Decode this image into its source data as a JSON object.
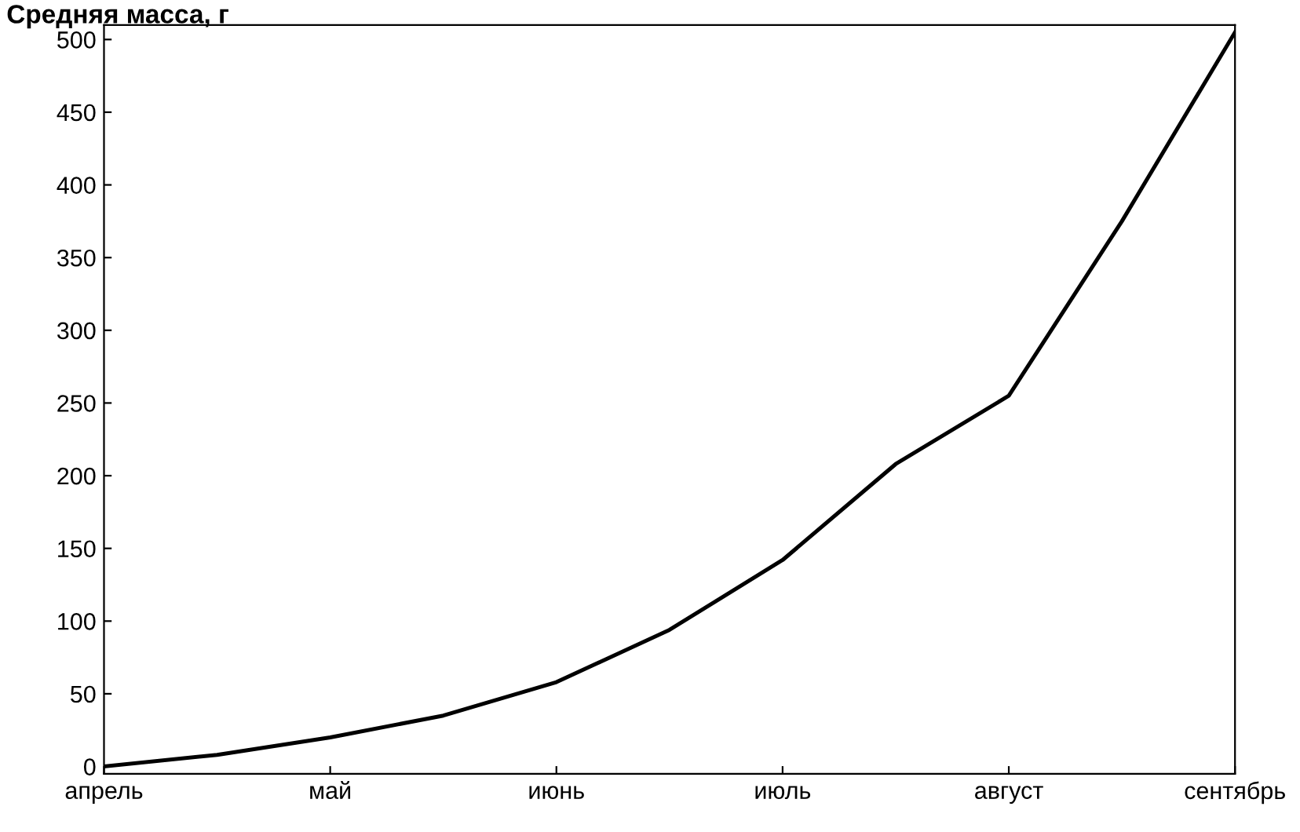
{
  "chart_data": {
    "type": "line",
    "ylabel": "Средняя масса, г",
    "categories": [
      "апрель",
      null,
      "май",
      null,
      "июнь",
      null,
      "июль",
      null,
      "август",
      null,
      "сентябрь"
    ],
    "series": [
      {
        "color": "#000000",
        "values": [
          0,
          8,
          20,
          35,
          58,
          94,
          142,
          208,
          255,
          375,
          505
        ]
      }
    ],
    "ylim": [
      -5,
      510
    ],
    "yticks": [
      0,
      50,
      100,
      150,
      200,
      250,
      300,
      350,
      400,
      450,
      500
    ],
    "grid": false,
    "marker": "none",
    "line_style": "solid"
  }
}
